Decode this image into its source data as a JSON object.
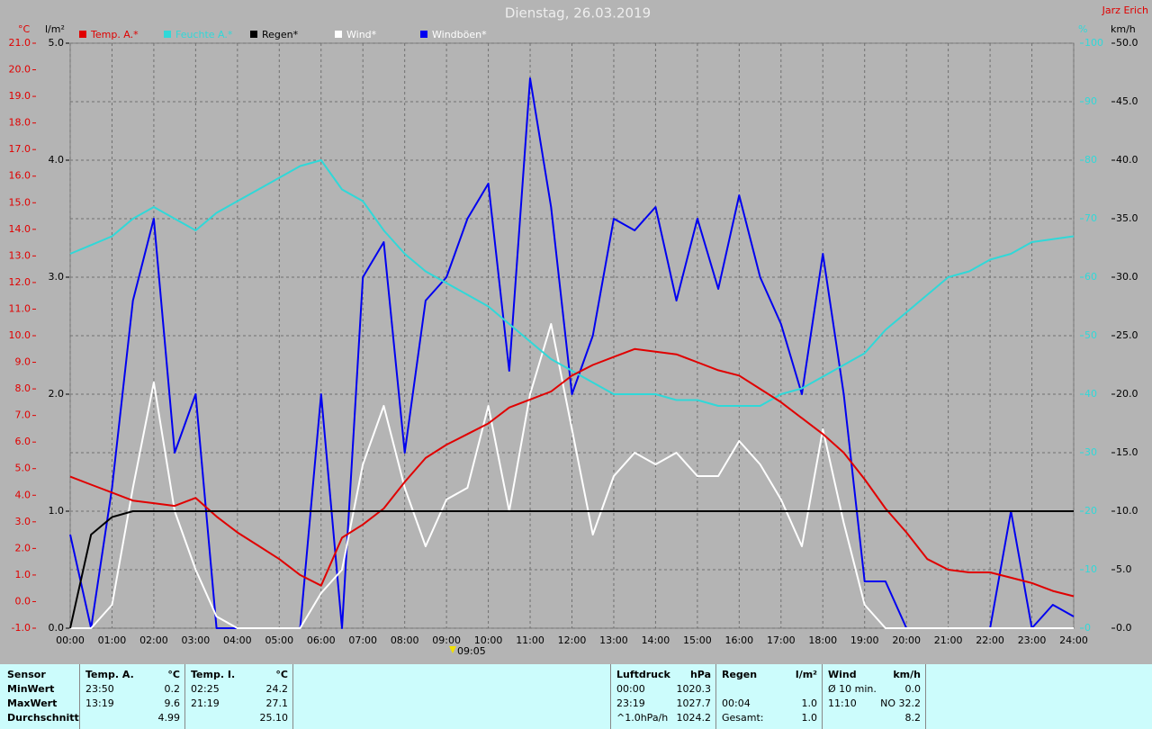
{
  "header": {
    "title": "Dienstag, 26.03.2019",
    "author": "Jarz Erich"
  },
  "chart_data": {
    "type": "line",
    "x": [
      0,
      0.5,
      1,
      1.5,
      2,
      2.5,
      3,
      3.5,
      4,
      4.5,
      5,
      5.5,
      6,
      6.5,
      7,
      7.5,
      8,
      8.5,
      9,
      9.5,
      10,
      10.5,
      11,
      11.5,
      12,
      12.5,
      13,
      13.5,
      14,
      14.5,
      15,
      15.5,
      16,
      16.5,
      17,
      17.5,
      18,
      18.5,
      19,
      19.5,
      20,
      20.5,
      21,
      21.5,
      22,
      22.5,
      23,
      23.5,
      24
    ],
    "xlim": [
      0,
      24
    ],
    "xticks": [
      {
        "value": 0,
        "label": "00:00"
      },
      {
        "value": 1,
        "label": "01:00"
      },
      {
        "value": 2,
        "label": "02:00"
      },
      {
        "value": 3,
        "label": "03:00"
      },
      {
        "value": 4,
        "label": "04:00"
      },
      {
        "value": 5,
        "label": "05:00"
      },
      {
        "value": 6,
        "label": "06:00"
      },
      {
        "value": 7,
        "label": "07:00"
      },
      {
        "value": 8,
        "label": "08:00"
      },
      {
        "value": 9,
        "label": "09:00"
      },
      {
        "value": 10,
        "label": "10:00"
      },
      {
        "value": 11,
        "label": "11:00"
      },
      {
        "value": 12,
        "label": "12:00"
      },
      {
        "value": 13,
        "label": "13:00"
      },
      {
        "value": 14,
        "label": "14:00"
      },
      {
        "value": 15,
        "label": "15:00"
      },
      {
        "value": 16,
        "label": "16:00"
      },
      {
        "value": 17,
        "label": "17:00"
      },
      {
        "value": 18,
        "label": "18:00"
      },
      {
        "value": 19,
        "label": "19:00"
      },
      {
        "value": 20,
        "label": "20:00"
      },
      {
        "value": 21,
        "label": "21:00"
      },
      {
        "value": 22,
        "label": "22:00"
      },
      {
        "value": 23,
        "label": "23:00"
      },
      {
        "value": 24,
        "label": "24:00"
      }
    ],
    "marker_label": "09:05",
    "ylabel": "°C",
    "ylim": [
      -1,
      21
    ],
    "yticks": [
      {
        "value": -1,
        "label": "-1.0"
      },
      {
        "value": 0,
        "label": "0.0"
      },
      {
        "value": 1,
        "label": "1.0"
      },
      {
        "value": 2,
        "label": "2.0"
      },
      {
        "value": 3,
        "label": "3.0"
      },
      {
        "value": 4,
        "label": "4.0"
      },
      {
        "value": 5,
        "label": "5.0"
      },
      {
        "value": 6,
        "label": "6.0"
      },
      {
        "value": 7,
        "label": "7.0"
      },
      {
        "value": 8,
        "label": "8.0"
      },
      {
        "value": 9,
        "label": "9.0"
      },
      {
        "value": 10,
        "label": "10.0"
      },
      {
        "value": 11,
        "label": "11.0"
      },
      {
        "value": 12,
        "label": "12.0"
      },
      {
        "value": 13,
        "label": "13.0"
      },
      {
        "value": 14,
        "label": "14.0"
      },
      {
        "value": 15,
        "label": "15.0"
      },
      {
        "value": 16,
        "label": "16.0"
      },
      {
        "value": 17,
        "label": "17.0"
      },
      {
        "value": 18,
        "label": "18.0"
      },
      {
        "value": 19,
        "label": "19.0"
      },
      {
        "value": 20,
        "label": "20.0"
      },
      {
        "value": 21,
        "label": "21.0"
      }
    ],
    "y_rain_label": "l/m²",
    "y_rain_lim": [
      0,
      5
    ],
    "y_rain_ticks": [
      {
        "value": 0,
        "label": "0.0"
      },
      {
        "value": 1,
        "label": "1.0"
      },
      {
        "value": 2,
        "label": "2.0"
      },
      {
        "value": 3,
        "label": "3.0"
      },
      {
        "value": 4,
        "label": "4.0"
      },
      {
        "value": 5,
        "label": "5.0"
      }
    ],
    "y2label": "%",
    "y2lim": [
      0,
      100
    ],
    "y2ticks": [
      0,
      10,
      20,
      30,
      40,
      50,
      60,
      70,
      80,
      90,
      100
    ],
    "y3label": "km/h",
    "y3lim": [
      0,
      50
    ],
    "y3ticks": [
      {
        "value": 0,
        "label": "0.0"
      },
      {
        "value": 5,
        "label": "5.0"
      },
      {
        "value": 10,
        "label": "10.0"
      },
      {
        "value": 15,
        "label": "15.0"
      },
      {
        "value": 20,
        "label": "20.0"
      },
      {
        "value": 25,
        "label": "25.0"
      },
      {
        "value": 30,
        "label": "30.0"
      },
      {
        "value": 35,
        "label": "35.0"
      },
      {
        "value": 40,
        "label": "40.0"
      },
      {
        "value": 45,
        "label": "45.0"
      },
      {
        "value": 50,
        "label": "50.0"
      }
    ],
    "grid": true,
    "series": [
      {
        "name": "Temp. A.*",
        "color": "#e00000",
        "axis": "y",
        "values": [
          4.7,
          4.4,
          4.1,
          3.8,
          3.7,
          3.6,
          3.9,
          3.2,
          2.6,
          2.1,
          1.6,
          1.0,
          0.6,
          2.4,
          2.9,
          3.5,
          4.5,
          5.4,
          5.9,
          6.3,
          6.7,
          7.3,
          7.6,
          7.9,
          8.5,
          8.9,
          9.2,
          9.5,
          9.4,
          9.3,
          9.0,
          8.7,
          8.5,
          8.0,
          7.5,
          6.9,
          6.3,
          5.6,
          4.6,
          3.5,
          2.6,
          1.6,
          1.2,
          1.1,
          1.1,
          0.9,
          0.7,
          0.4,
          0.2
        ]
      },
      {
        "name": "Feuchte A.*",
        "color": "#30d8d8",
        "axis": "y2",
        "values": [
          64,
          65.5,
          67,
          70,
          72,
          70,
          68,
          71,
          73,
          75,
          77,
          79,
          80,
          75,
          73,
          68,
          64,
          61,
          59,
          57,
          55,
          52,
          49,
          46,
          44,
          42,
          40,
          40,
          40,
          39,
          39,
          38,
          38,
          38,
          40,
          41,
          43,
          45,
          47,
          51,
          54,
          57,
          60,
          61,
          63,
          64,
          66,
          66.5,
          67
        ]
      },
      {
        "name": "Regen*",
        "color": "#000000",
        "axis": "y_rain",
        "values": [
          0,
          0.8,
          0.95,
          1,
          1,
          1,
          1,
          1,
          1,
          1,
          1,
          1,
          1,
          1,
          1,
          1,
          1,
          1,
          1,
          1,
          1,
          1,
          1,
          1,
          1,
          1,
          1,
          1,
          1,
          1,
          1,
          1,
          1,
          1,
          1,
          1,
          1,
          1,
          1,
          1,
          1,
          1,
          1,
          1,
          1,
          1,
          1,
          1,
          1
        ]
      },
      {
        "name": "Wind*",
        "color": "#ffffff",
        "axis": "y3",
        "values": [
          0,
          0,
          2,
          12,
          21,
          10,
          5,
          1,
          0,
          0,
          0,
          0,
          3,
          5,
          14,
          19,
          12,
          7,
          11,
          12,
          19,
          10,
          20,
          26,
          17,
          8,
          13,
          15,
          14,
          15,
          13,
          13,
          16,
          14,
          11,
          7,
          17,
          9,
          2,
          0,
          0,
          0,
          0,
          0,
          0,
          0,
          0,
          0,
          0
        ]
      },
      {
        "name": "Windböen*",
        "color": "#0000f0",
        "axis": "y3",
        "values": [
          8,
          0,
          12,
          28,
          35,
          15,
          20,
          0,
          0,
          0,
          0,
          0,
          20,
          0,
          30,
          33,
          15,
          28,
          30,
          35,
          38,
          22,
          47,
          36,
          20,
          25,
          35,
          34,
          36,
          28,
          35,
          29,
          37,
          30,
          26,
          20,
          32,
          20,
          4,
          4,
          0,
          0,
          0,
          0,
          0,
          10,
          0,
          2,
          1
        ]
      }
    ]
  },
  "stats": {
    "row_labels": [
      "Sensor",
      "MinWert",
      "MaxWert",
      "Durchschnitt"
    ],
    "groups": [
      {
        "name": "Temp. A.",
        "unit": "°C",
        "rows": [
          [
            "23:50",
            "0.2"
          ],
          [
            "13:19",
            "9.6"
          ],
          [
            null,
            "4.99"
          ]
        ]
      },
      {
        "name": "Temp. I.",
        "unit": "°C",
        "rows": [
          [
            "02:25",
            "24.2"
          ],
          [
            "21:19",
            "27.1"
          ],
          [
            null,
            "25.10"
          ]
        ]
      },
      {
        "name": "Luftdruck",
        "unit": "hPa",
        "rows": [
          [
            "00:00",
            "1020.3"
          ],
          [
            "23:19",
            "1027.7"
          ],
          [
            "^1.0hPa/h",
            "1024.2"
          ]
        ]
      },
      {
        "name": "Regen",
        "unit": "l/m²",
        "rows": [
          [
            null,
            null
          ],
          [
            "00:04",
            "1.0"
          ],
          [
            "Gesamt:",
            "1.0"
          ]
        ]
      },
      {
        "name": "Wind",
        "unit": "km/h",
        "rows": [
          [
            "Ø 10 min.",
            "0.0"
          ],
          [
            "11:10",
            "NO 32.2"
          ],
          [
            null,
            "8.2"
          ]
        ]
      }
    ]
  }
}
